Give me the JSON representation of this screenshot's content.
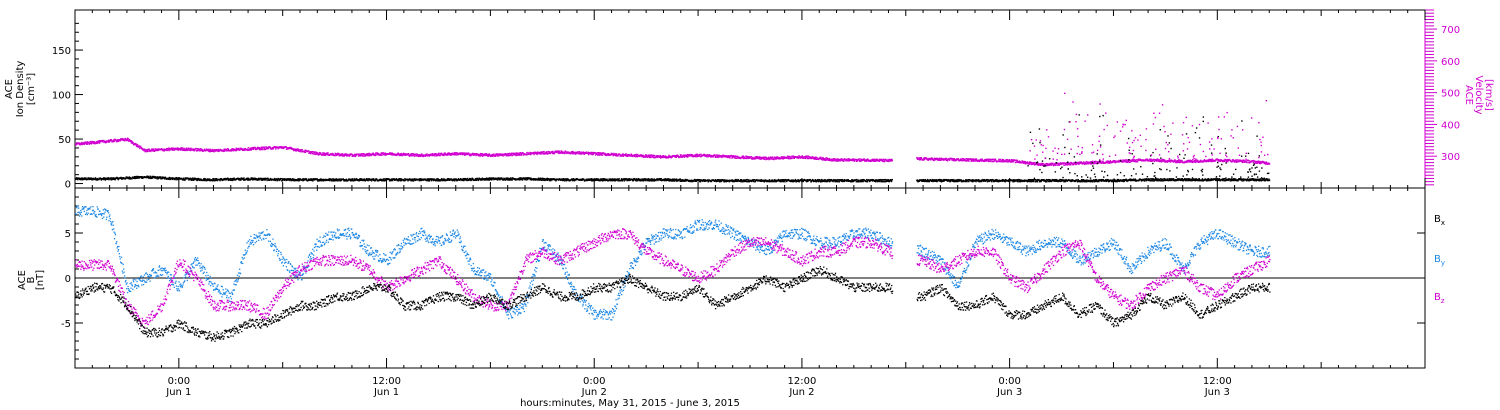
{
  "colors": {
    "black": "#000000",
    "magenta": "#d000d0",
    "blue": "#1e88e5"
  },
  "chart_data": [
    {
      "type": "scatter",
      "panel": "top",
      "ylabel_left_lines": [
        "ACE",
        "Ion Density",
        "[cm⁻³]"
      ],
      "ylabel_right_lines": [
        "ACE",
        "Velocity",
        "[km/s]"
      ],
      "x_start": "2015-05-31T18:00",
      "x_end": "2015-06-04T00:00",
      "xlim_hours": [
        0,
        78
      ],
      "ylim": [
        -5,
        195
      ],
      "yticks": [
        0,
        50,
        100,
        150
      ],
      "y2lim": [
        200,
        760
      ],
      "y2ticks": [
        300,
        400,
        500,
        600,
        700
      ],
      "series": [
        {
          "name": "Ion Density",
          "axis": "left",
          "color": "#000000",
          "x": [
            0,
            2,
            4,
            6,
            8,
            10,
            12,
            14,
            16,
            18,
            20,
            22,
            24,
            26,
            28,
            30,
            32,
            34,
            36,
            38,
            40,
            42,
            44,
            46,
            47,
            48,
            50,
            52,
            54,
            56,
            58,
            60,
            62,
            64,
            66,
            68,
            69
          ],
          "y": [
            6,
            6,
            8,
            6,
            5,
            6,
            5,
            5,
            5,
            5,
            5,
            5,
            6,
            6,
            5,
            5,
            5,
            5,
            4,
            4,
            4,
            4,
            4,
            4,
            4,
            4,
            4,
            4,
            4,
            4,
            4,
            4,
            5,
            5,
            5,
            5,
            5
          ]
        },
        {
          "name": "Velocity",
          "axis": "right",
          "color": "#d000d0",
          "x": [
            0,
            1,
            2,
            3,
            4,
            6,
            8,
            10,
            12,
            14,
            16,
            18,
            20,
            22,
            24,
            26,
            28,
            30,
            32,
            34,
            36,
            38,
            40,
            42,
            44,
            46,
            47,
            48,
            50,
            52,
            54,
            56,
            58,
            60,
            62,
            64,
            66,
            68,
            69
          ],
          "y": [
            340,
            345,
            350,
            355,
            320,
            325,
            320,
            325,
            330,
            310,
            305,
            310,
            305,
            310,
            305,
            310,
            315,
            310,
            305,
            300,
            305,
            300,
            295,
            300,
            290,
            290,
            288,
            295,
            292,
            290,
            288,
            275,
            280,
            285,
            290,
            285,
            290,
            285,
            280
          ]
        }
      ]
    },
    {
      "type": "scatter",
      "panel": "bottom",
      "ylabel_left_lines": [
        "ACE",
        "B",
        "[nT]"
      ],
      "xlim_hours": [
        0,
        78
      ],
      "ylim": [
        -10,
        10
      ],
      "yticks": [
        -5,
        0,
        5
      ],
      "x_tick_labels": [
        {
          "x": 6,
          "line1": "0:00",
          "line2": "Jun 1"
        },
        {
          "x": 18,
          "line1": "12:00",
          "line2": "Jun 1"
        },
        {
          "x": 30,
          "line1": "0:00",
          "line2": "Jun 2"
        },
        {
          "x": 42,
          "line1": "12:00",
          "line2": "Jun 2"
        },
        {
          "x": 54,
          "line1": "0:00",
          "line2": "Jun 3"
        },
        {
          "x": 66,
          "line1": "12:00",
          "line2": "Jun 3"
        }
      ],
      "xlabel": "hours:minutes, May 31, 2015 - June  3, 2015",
      "series": [
        {
          "name": "Bx",
          "name_main": "B",
          "name_sub": "x",
          "color": "#000000",
          "x": [
            0,
            1,
            2,
            3,
            4,
            5,
            6,
            7,
            8,
            9,
            10,
            11,
            12,
            13,
            14,
            15,
            16,
            17,
            18,
            19,
            20,
            21,
            22,
            23,
            24,
            25,
            26,
            27,
            28,
            29,
            30,
            31,
            32,
            33,
            34,
            35,
            36,
            37,
            38,
            39,
            40,
            41,
            42,
            43,
            44,
            45,
            46,
            47,
            48,
            49,
            50,
            51,
            52,
            53,
            54,
            55,
            56,
            57,
            58,
            59,
            60,
            61,
            62,
            63,
            64,
            65,
            66,
            67,
            68,
            69
          ],
          "y": [
            -2,
            -1,
            -1,
            -3,
            -6,
            -6,
            -5,
            -6,
            -6.5,
            -6,
            -5,
            -5,
            -4,
            -3,
            -3,
            -2,
            -2,
            -1,
            -1,
            -3,
            -3,
            -2,
            -2,
            -3,
            -2,
            -3,
            -2,
            -1,
            -2,
            -2,
            -1,
            -1,
            0,
            -1,
            -2,
            -2,
            -1,
            -3,
            -2,
            -1,
            0,
            -1,
            0,
            1,
            0,
            -1,
            -1,
            -1,
            -2,
            -2,
            -1,
            -3,
            -3,
            -2,
            -4,
            -4,
            -3,
            -2,
            -4,
            -3,
            -5,
            -4,
            -2,
            -3,
            -2,
            -4,
            -3,
            -2,
            -1,
            -1
          ]
        },
        {
          "name": "By",
          "name_main": "B",
          "name_sub": "y",
          "color": "#1e88e5",
          "x": [
            0,
            1,
            2,
            3,
            4,
            5,
            6,
            7,
            8,
            9,
            10,
            11,
            12,
            13,
            14,
            15,
            16,
            17,
            18,
            19,
            20,
            21,
            22,
            23,
            24,
            25,
            26,
            27,
            28,
            29,
            30,
            31,
            32,
            33,
            34,
            35,
            36,
            37,
            38,
            39,
            40,
            41,
            42,
            43,
            44,
            45,
            46,
            47,
            48,
            49,
            50,
            51,
            52,
            53,
            54,
            55,
            56,
            57,
            58,
            59,
            60,
            61,
            62,
            63,
            64,
            65,
            66,
            67,
            68,
            69
          ],
          "y": [
            7.5,
            7.5,
            7,
            -1,
            0,
            1,
            -1,
            2,
            -1,
            -2,
            4,
            5,
            2,
            0,
            4,
            5,
            5,
            3,
            2,
            4,
            5,
            4,
            5,
            1,
            0,
            -4,
            -3,
            4,
            2,
            -2,
            -4,
            -4,
            1,
            4,
            5,
            5,
            6,
            6,
            5,
            4,
            3,
            5,
            5,
            4,
            4,
            5,
            5,
            4,
            4,
            3,
            2,
            -1,
            4,
            5,
            4,
            3,
            4,
            4,
            2,
            3,
            4,
            1,
            3,
            4,
            1,
            4,
            5,
            4,
            3,
            3
          ]
        },
        {
          "name": "Bz",
          "name_main": "B",
          "name_sub": "z",
          "color": "#d000d0",
          "x": [
            0,
            1,
            2,
            3,
            4,
            5,
            6,
            7,
            8,
            9,
            10,
            11,
            12,
            13,
            14,
            15,
            16,
            17,
            18,
            19,
            20,
            21,
            22,
            23,
            24,
            25,
            26,
            27,
            28,
            29,
            30,
            31,
            32,
            33,
            34,
            35,
            36,
            37,
            38,
            39,
            40,
            41,
            42,
            43,
            44,
            45,
            46,
            47,
            48,
            49,
            50,
            51,
            52,
            53,
            54,
            55,
            56,
            57,
            58,
            59,
            60,
            61,
            62,
            63,
            64,
            65,
            66,
            67,
            68,
            69
          ],
          "y": [
            1.5,
            1.5,
            1.5,
            -3,
            -5,
            -3,
            2,
            0,
            -3,
            -3,
            -3,
            -4,
            -1,
            1,
            2,
            2,
            2,
            1,
            -1,
            0,
            1,
            2,
            0,
            -2,
            -3,
            -3,
            2,
            3,
            2,
            3,
            4,
            5,
            5,
            3,
            2,
            1,
            0,
            1,
            3,
            4,
            4,
            3,
            2,
            3,
            3,
            4,
            4,
            3,
            2,
            2,
            1,
            2,
            3,
            3,
            0,
            -1,
            1,
            3,
            4,
            0,
            -2,
            -3,
            -1,
            0,
            1,
            -1,
            -2,
            0,
            1,
            2
          ]
        }
      ]
    }
  ]
}
